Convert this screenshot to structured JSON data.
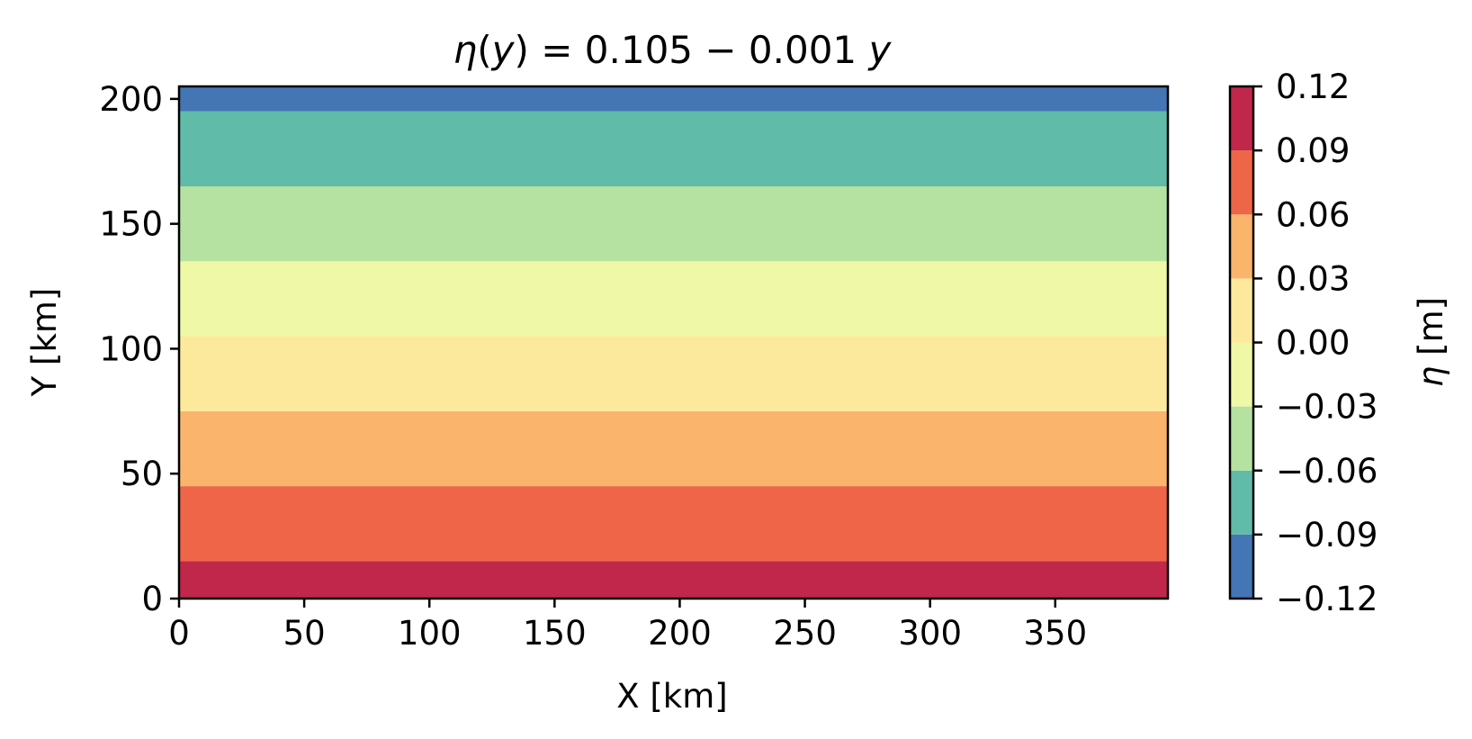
{
  "chart_data": {
    "type": "heatmap",
    "subtype": "filled-contour",
    "title": "η(y) = 0.105 − 0.001 y",
    "xlabel": "X [km]",
    "ylabel": "Y [km]",
    "xlim": [
      0,
      395
    ],
    "ylim": [
      0,
      205
    ],
    "xticks": [
      0,
      50,
      100,
      150,
      200,
      250,
      300,
      350
    ],
    "yticks": [
      0,
      50,
      100,
      150,
      200
    ],
    "x_tick_labels": [
      "0",
      "50",
      "100",
      "150",
      "200",
      "250",
      "300",
      "350"
    ],
    "y_tick_labels": [
      "0",
      "50",
      "100",
      "150",
      "200"
    ],
    "field": {
      "formula": "η(y) = 0.105 − 0.001 y",
      "intercept": 0.105,
      "slope": -0.001
    },
    "bands": [
      {
        "y_from": 0,
        "y_to": 15,
        "level_low": 0.09,
        "level_high": 0.12,
        "color": "#c0274a"
      },
      {
        "y_from": 15,
        "y_to": 45,
        "level_low": 0.06,
        "level_high": 0.09,
        "color": "#ee6647"
      },
      {
        "y_from": 45,
        "y_to": 75,
        "level_low": 0.03,
        "level_high": 0.06,
        "color": "#fbb46b"
      },
      {
        "y_from": 75,
        "y_to": 105,
        "level_low": 0.0,
        "level_high": 0.03,
        "color": "#fde99b"
      },
      {
        "y_from": 105,
        "y_to": 135,
        "level_low": -0.03,
        "level_high": 0.0,
        "color": "#eff8a6"
      },
      {
        "y_from": 135,
        "y_to": 165,
        "level_low": -0.06,
        "level_high": -0.03,
        "color": "#b5e1a1"
      },
      {
        "y_from": 165,
        "y_to": 195,
        "level_low": -0.09,
        "level_high": -0.06,
        "color": "#61bba9"
      },
      {
        "y_from": 195,
        "y_to": 205,
        "level_low": -0.12,
        "level_high": -0.09,
        "color": "#4475b4"
      }
    ],
    "colorbar": {
      "label": "η [m]",
      "levels": [
        -0.12,
        -0.09,
        -0.06,
        -0.03,
        0.0,
        0.03,
        0.06,
        0.09,
        0.12
      ],
      "tick_labels": [
        "−0.12",
        "−0.09",
        "−0.06",
        "−0.03",
        "0.00",
        "0.03",
        "0.06",
        "0.09",
        "0.12"
      ],
      "colors": [
        "#4475b4",
        "#61bba9",
        "#b5e1a1",
        "#eff8a6",
        "#fde99b",
        "#fbb46b",
        "#ee6647",
        "#c0274a"
      ],
      "placement": "right"
    },
    "grid": false,
    "legend": "none"
  }
}
